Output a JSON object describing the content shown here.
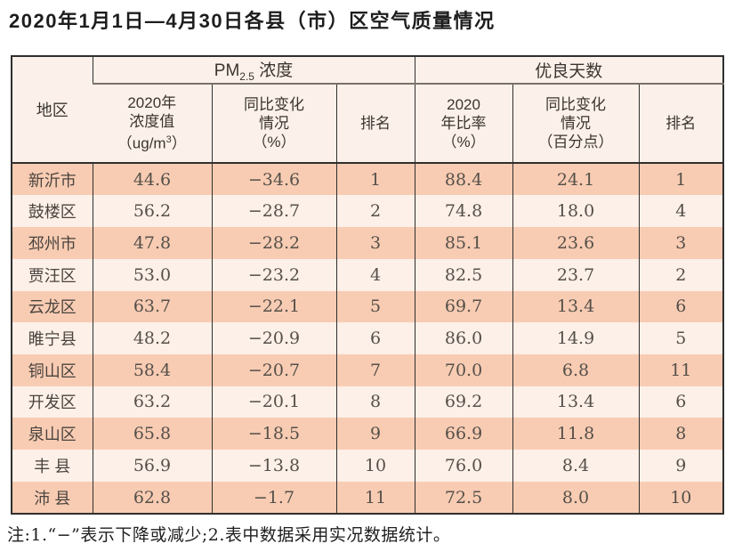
{
  "title": "2020年1月1日—4月30日各县（市）区空气质量情况",
  "table": {
    "headers": {
      "region": "地区",
      "pm_group": {
        "base": "PM",
        "sub": "2.5",
        "rest": " 浓度"
      },
      "good_group": "优良天数",
      "pm_col1": {
        "line1": "2020年",
        "line2": "浓度值",
        "unit_pre": "（ug/m",
        "unit_sup": "3",
        "unit_post": "）"
      },
      "pm_col2": {
        "line1": "同比变化",
        "line2": "情况",
        "line3": "（%）"
      },
      "pm_col3": {
        "label": "排名"
      },
      "good_col1": {
        "line1": "2020",
        "line2": "年比率",
        "line3": "（%）"
      },
      "good_col2": {
        "line1": "同比变化",
        "line2": "情况",
        "line3": "（百分点）"
      },
      "good_col3": {
        "label": "排名"
      }
    },
    "rows": [
      {
        "region": "新沂市",
        "pm_value": "44.6",
        "pm_change": "−34.6",
        "pm_rank": "1",
        "good_rate": "88.4",
        "good_change": "24.1",
        "good_rank": "1"
      },
      {
        "region": "鼓楼区",
        "pm_value": "56.2",
        "pm_change": "−28.7",
        "pm_rank": "2",
        "good_rate": "74.8",
        "good_change": "18.0",
        "good_rank": "4"
      },
      {
        "region": "邳州市",
        "pm_value": "47.8",
        "pm_change": "−28.2",
        "pm_rank": "3",
        "good_rate": "85.1",
        "good_change": "23.6",
        "good_rank": "3"
      },
      {
        "region": "贾汪区",
        "pm_value": "53.0",
        "pm_change": "−23.2",
        "pm_rank": "4",
        "good_rate": "82.5",
        "good_change": "23.7",
        "good_rank": "2"
      },
      {
        "region": "云龙区",
        "pm_value": "63.7",
        "pm_change": "−22.1",
        "pm_rank": "5",
        "good_rate": "69.7",
        "good_change": "13.4",
        "good_rank": "6"
      },
      {
        "region": "睢宁县",
        "pm_value": "48.2",
        "pm_change": "−20.9",
        "pm_rank": "6",
        "good_rate": "86.0",
        "good_change": "14.9",
        "good_rank": "5"
      },
      {
        "region": "铜山区",
        "pm_value": "58.4",
        "pm_change": "−20.7",
        "pm_rank": "7",
        "good_rate": "70.0",
        "good_change": "6.8",
        "good_rank": "11"
      },
      {
        "region": "开发区",
        "pm_value": "63.2",
        "pm_change": "−20.1",
        "pm_rank": "8",
        "good_rate": "69.2",
        "good_change": "13.4",
        "good_rank": "6"
      },
      {
        "region": "泉山区",
        "pm_value": "65.8",
        "pm_change": "−18.5",
        "pm_rank": "9",
        "good_rate": "66.9",
        "good_change": "11.8",
        "good_rank": "8"
      },
      {
        "region": "丰 县",
        "pm_value": "56.9",
        "pm_change": "−13.8",
        "pm_rank": "10",
        "good_rate": "76.0",
        "good_change": "8.4",
        "good_rank": "9"
      },
      {
        "region": "沛 县",
        "pm_value": "62.8",
        "pm_change": "−1.7",
        "pm_rank": "11",
        "good_rate": "72.5",
        "good_change": "8.0",
        "good_rank": "10"
      }
    ]
  },
  "footnote": "注:1.“−”表示下降或减少;2.表中数据采用实况数据统计。",
  "colors": {
    "row_salmon": "#f8ccb3",
    "row_light": "#fdf0e8",
    "header_bg": "#fcf1ea",
    "border_dark": "#2f2f2f",
    "group_divider": "#7a7268"
  }
}
